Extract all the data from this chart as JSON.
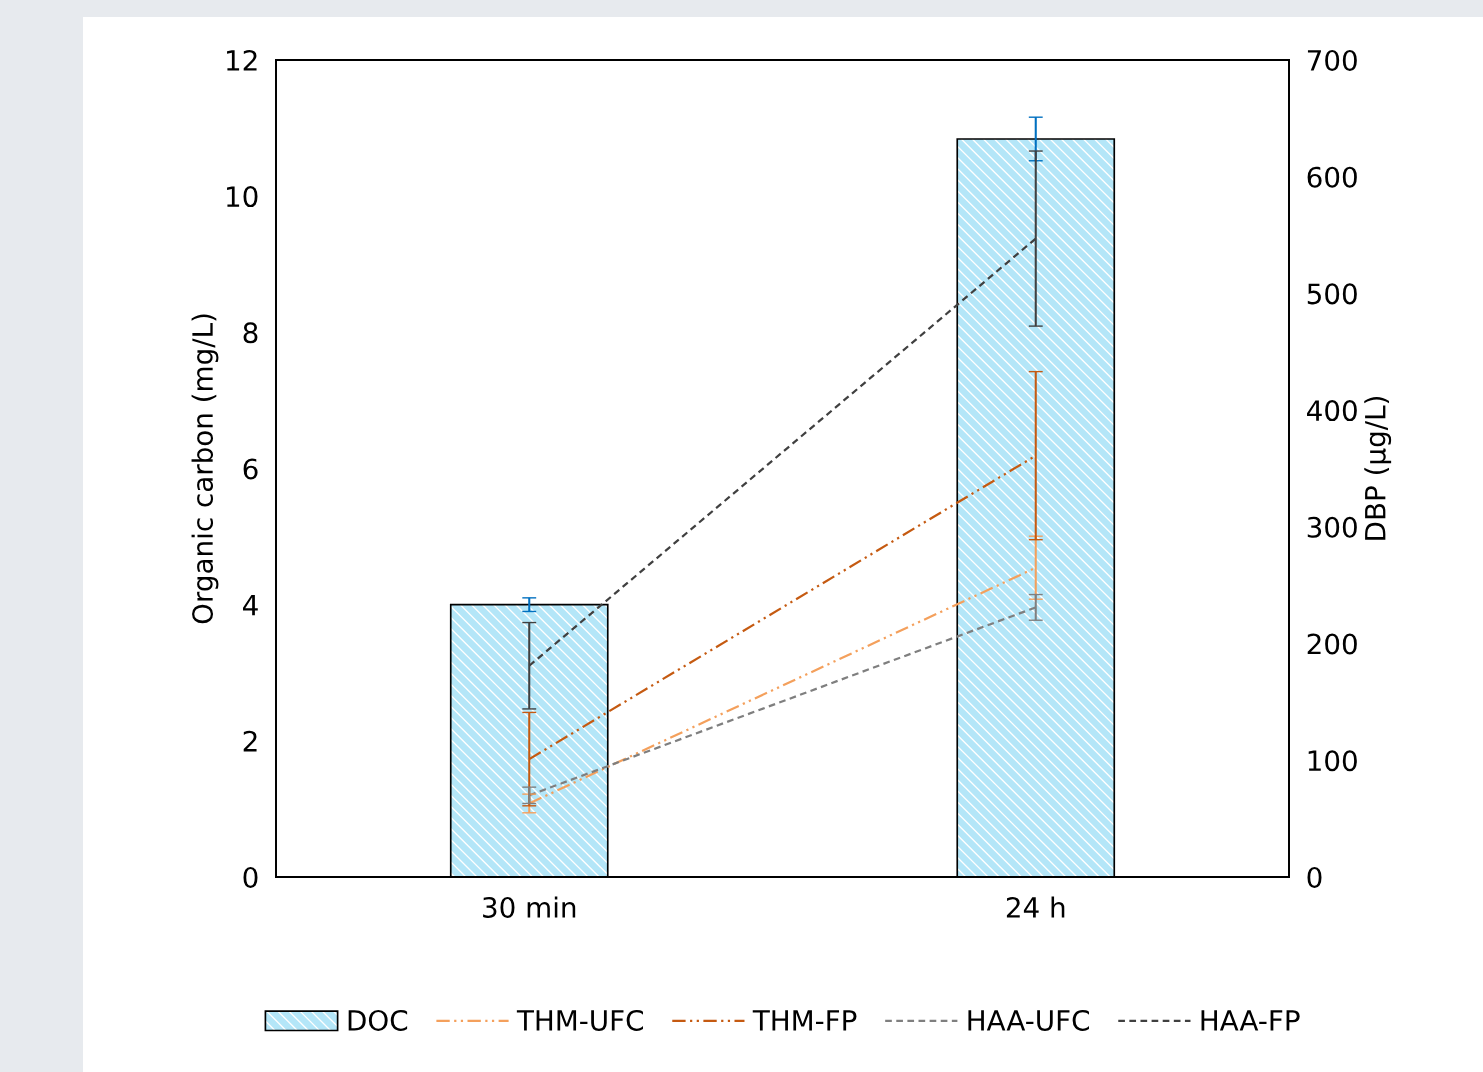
{
  "chart_data": {
    "type": "bar",
    "categories": [
      "30 min",
      "24 h"
    ],
    "ylabel": "Organic carbon (mg/L)",
    "y2label": "DBP (µg/L)",
    "ylim": [
      0,
      12
    ],
    "yticks": [
      0,
      2,
      4,
      6,
      8,
      10,
      12
    ],
    "y2lim": [
      0,
      700
    ],
    "y2ticks": [
      0,
      100,
      200,
      300,
      400,
      500,
      600,
      700
    ],
    "legend": "bottom",
    "grid": false,
    "series": [
      {
        "name": "DOC",
        "color": "#b4e6f8",
        "values": [
          4.0,
          10.84
        ],
        "errors": [
          0.1,
          0.32
        ]
      },
      {
        "name": "THM-UFC",
        "type": "line",
        "axis": "y2",
        "color": "#f4a05c",
        "line_style": "dashdotdot",
        "values": [
          63,
          265
        ],
        "errors": [
          8,
          27
        ]
      },
      {
        "name": "THM-FP",
        "type": "line",
        "axis": "y2",
        "color": "#c55a11",
        "line_style": "dashdotdot",
        "values": [
          101,
          361
        ],
        "errors": [
          40,
          72
        ]
      },
      {
        "name": "HAA-UFC",
        "type": "line",
        "axis": "y2",
        "color": "#7f7f7f",
        "line_style": "dashed",
        "values": [
          70,
          231
        ],
        "errors": [
          7,
          11
        ]
      },
      {
        "name": "HAA-FP",
        "type": "line",
        "axis": "y2",
        "color": "#404040",
        "line_style": "dashed",
        "values": [
          181,
          547
        ],
        "errors": [
          37,
          75
        ]
      }
    ]
  }
}
